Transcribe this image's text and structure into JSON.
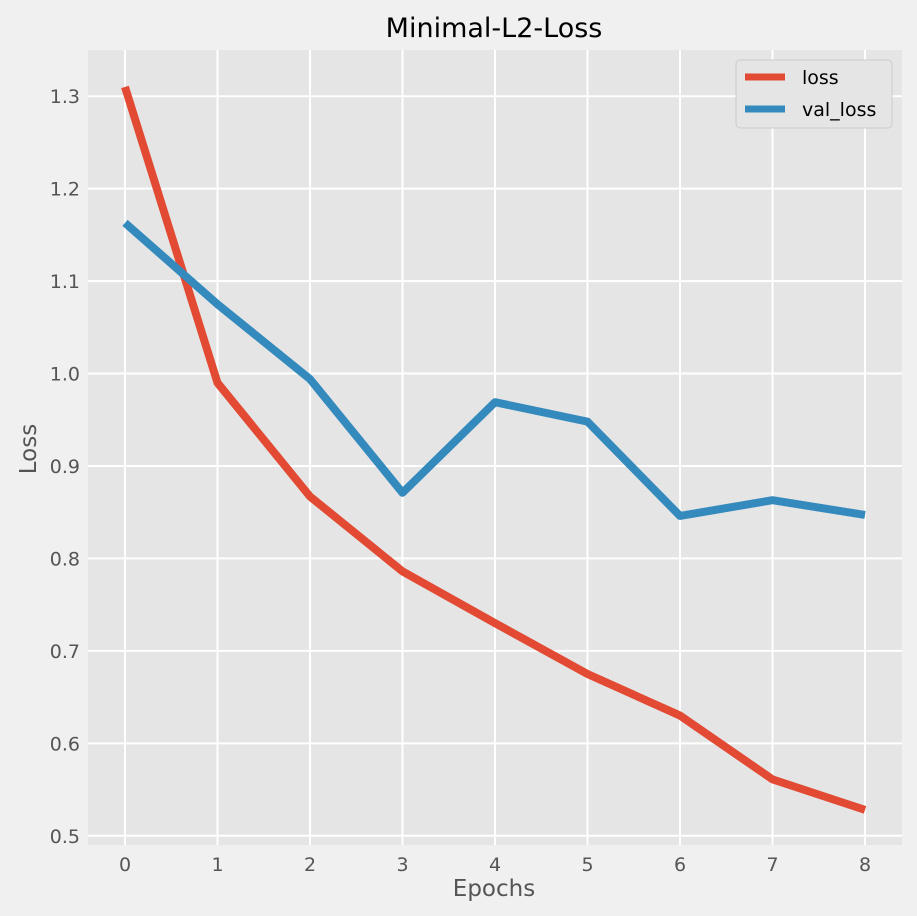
{
  "chart_data": {
    "type": "line",
    "title": "Minimal-L2-Loss",
    "xlabel": "Epochs",
    "ylabel": "Loss",
    "x": [
      0,
      1,
      2,
      3,
      4,
      5,
      6,
      7,
      8
    ],
    "xlim": [
      -0.4,
      8.4
    ],
    "ylim": [
      0.49,
      1.35
    ],
    "x_ticks": [
      "0",
      "1",
      "2",
      "3",
      "4",
      "5",
      "6",
      "7",
      "8"
    ],
    "y_ticks": [
      "0.5",
      "0.6",
      "0.7",
      "0.8",
      "0.9",
      "1.0",
      "1.1",
      "1.2",
      "1.3"
    ],
    "grid": true,
    "legend_position": "top-right",
    "series": [
      {
        "name": "loss",
        "color": "#e24a33",
        "values": [
          1.31,
          0.99,
          0.867,
          0.786,
          0.73,
          0.675,
          0.63,
          0.561,
          0.528
        ]
      },
      {
        "name": "val_loss",
        "color": "#348abd",
        "values": [
          1.163,
          1.075,
          0.994,
          0.871,
          0.969,
          0.948,
          0.846,
          0.863,
          0.847
        ]
      }
    ]
  }
}
